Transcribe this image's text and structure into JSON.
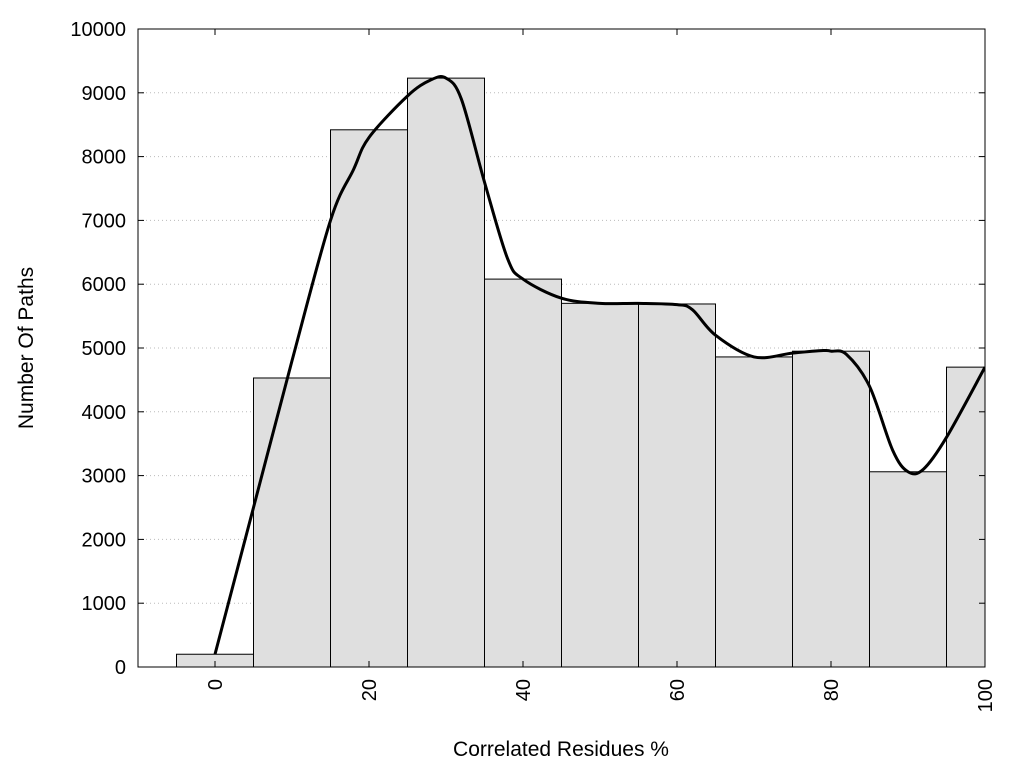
{
  "chart_data": {
    "type": "bar",
    "title": "",
    "xlabel": "Correlated Residues %",
    "ylabel": "Number Of Paths",
    "xlim": [
      -10,
      100
    ],
    "ylim": [
      0,
      10000
    ],
    "grid": "horizontal dotted",
    "categories": [
      0,
      10,
      20,
      30,
      40,
      50,
      60,
      70,
      80,
      90,
      100
    ],
    "bar_width": 10,
    "values": [
      200,
      4530,
      8420,
      9230,
      6080,
      5700,
      5690,
      4860,
      4950,
      3060,
      4700
    ],
    "curve": {
      "x": [
        0,
        5,
        10,
        15,
        18,
        20,
        25,
        28,
        30,
        32,
        35,
        38,
        40,
        45,
        50,
        55,
        60,
        62,
        65,
        70,
        75,
        79,
        80,
        82,
        85,
        88,
        90,
        92,
        95,
        100
      ],
      "y": [
        200,
        2500,
        4800,
        7000,
        7800,
        8300,
        8950,
        9200,
        9230,
        8900,
        7600,
        6400,
        6080,
        5780,
        5700,
        5700,
        5680,
        5600,
        5200,
        4860,
        4920,
        4960,
        4950,
        4900,
        4400,
        3400,
        3060,
        3100,
        3600,
        4700
      ]
    },
    "x_ticks": [
      "0",
      "20",
      "40",
      "60",
      "80",
      "100"
    ],
    "y_ticks": [
      "0",
      "1000",
      "2000",
      "3000",
      "4000",
      "5000",
      "6000",
      "7000",
      "8000",
      "9000",
      "10000"
    ],
    "colors": {
      "bar_fill": "#dfdfdf",
      "bar_stroke": "#000000",
      "curve": "#000000",
      "grid": "#bbbbbb"
    }
  }
}
